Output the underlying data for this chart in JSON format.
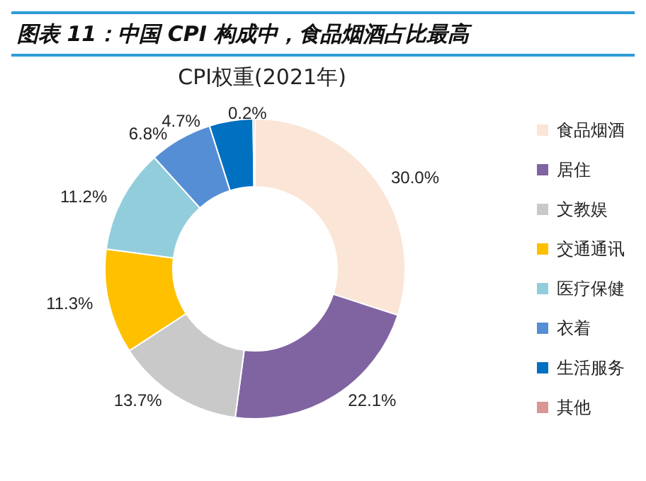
{
  "chart_data": {
    "type": "donut",
    "title": "图表 11：中国 CPI 构成中，食品烟酒占比最高",
    "subtitle": "CPI权重(2021年)",
    "categories": [
      "食品烟酒",
      "居住",
      "文教娱",
      "交通通讯",
      "医疗保健",
      "衣着",
      "生活服务",
      "其他"
    ],
    "values": [
      30.0,
      22.1,
      13.7,
      11.3,
      11.2,
      6.8,
      4.7,
      0.2
    ],
    "colors": [
      "#fbe5d6",
      "#8064a2",
      "#c9c9c9",
      "#ffc000",
      "#92cddc",
      "#558ed5",
      "#0070c0",
      "#d99694"
    ],
    "value_labels": [
      "30.0%",
      "22.1%",
      "13.7%",
      "11.3%",
      "11.2%",
      "6.8%",
      "4.7%",
      "0.2%"
    ],
    "legend": "right"
  }
}
